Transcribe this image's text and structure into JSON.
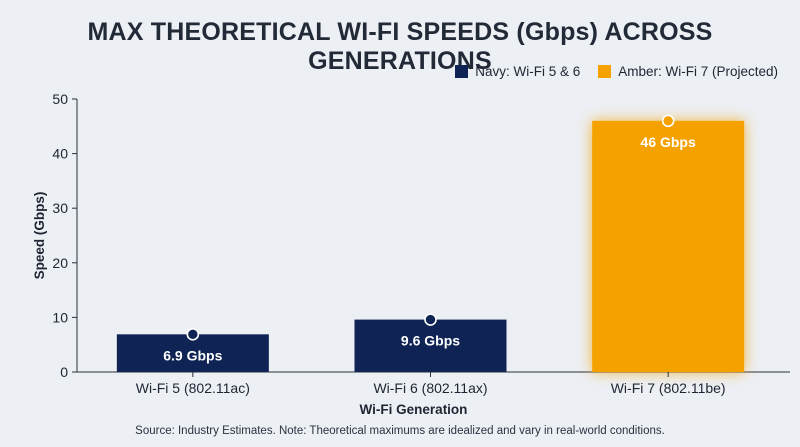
{
  "chart_data": {
    "type": "bar",
    "title": "MAX THEORETICAL WI-FI SPEEDS (Gbps) ACROSS GENERATIONS",
    "xlabel": "Wi-Fi Generation",
    "ylabel": "Speed (Gbps)",
    "ylim": [
      0,
      50
    ],
    "yticks": [
      "0",
      "10",
      "20",
      "30",
      "40",
      "50"
    ],
    "categories": [
      "Wi-Fi 5 (802.11ac)",
      "Wi-Fi 6 (802.11ax)",
      "Wi-Fi 7 (802.11be)"
    ],
    "values": [
      6.9,
      9.6,
      46
    ],
    "data_labels": [
      "6.9 Gbps",
      "9.6 Gbps",
      "46 Gbps"
    ],
    "bar_colors": [
      "#0f2454",
      "#0f2454",
      "#f5a200"
    ],
    "legend": [
      {
        "label": "Navy: Wi-Fi 5 & 6",
        "color": "#0f2454"
      },
      {
        "label": "Amber: Wi-Fi 7 (Projected)",
        "color": "#f5a200"
      }
    ],
    "legend_position": "top-right",
    "grid": false,
    "source": "Source: Industry Estimates. Note: Theoretical maximums are idealized and vary in real-world conditions."
  }
}
